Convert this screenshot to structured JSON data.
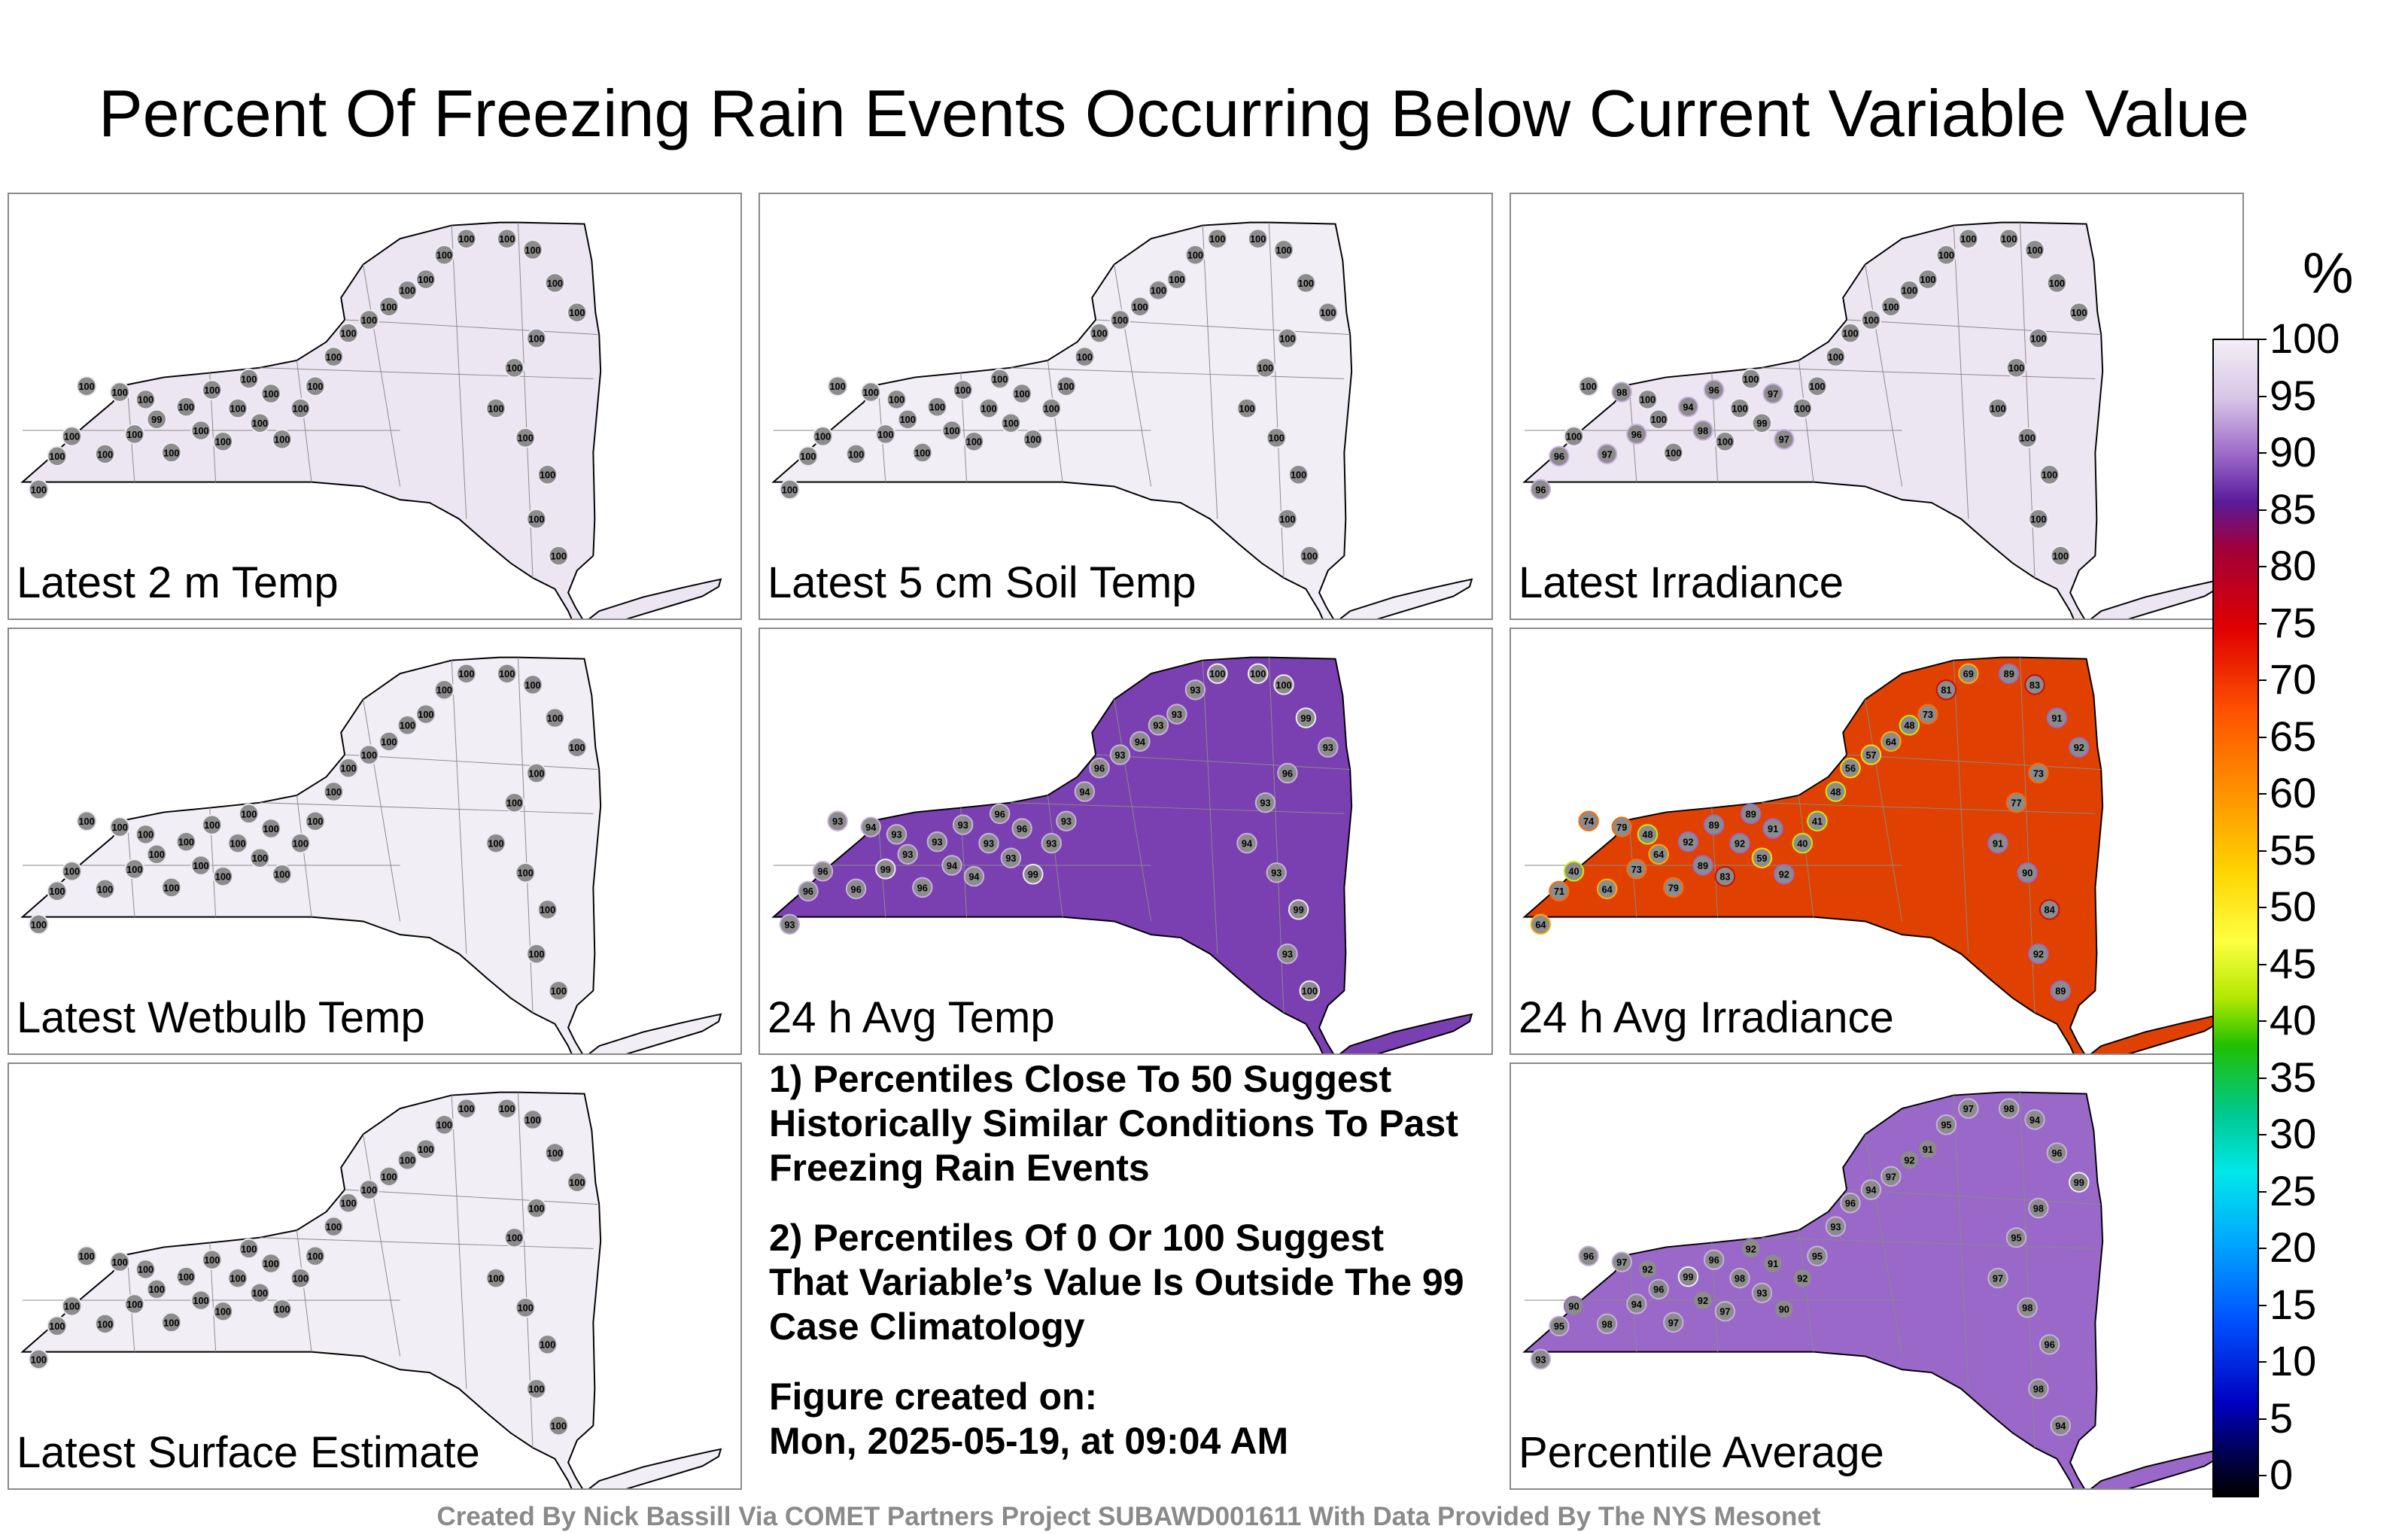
{
  "title": "Percent Of Freezing Rain Events Occurring Below Current Variable Value",
  "panels": [
    {
      "label": "Latest 2 m Temp",
      "fill": "#ece6f2",
      "values": [
        "100",
        "100",
        "100",
        "100",
        "100",
        "100",
        "100",
        "100",
        "99",
        "100",
        "100",
        "100",
        "100",
        "100",
        "100",
        "100",
        "100",
        "100",
        "100",
        "100",
        "100",
        "100",
        "100",
        "100",
        "100",
        "100",
        "100",
        "100",
        "100",
        "100",
        "100",
        "100",
        "100",
        "100",
        "100",
        "100",
        "100",
        "100",
        "100",
        "100"
      ]
    },
    {
      "label": "Latest 5 cm Soil Temp",
      "fill": "#f2eef6",
      "values": [
        "100",
        "100",
        "100",
        "100",
        "100",
        "100",
        "100",
        "100",
        "100",
        "100",
        "100",
        "100",
        "100",
        "100",
        "100",
        "100",
        "100",
        "100",
        "100",
        "100",
        "100",
        "100",
        "100",
        "100",
        "100",
        "100",
        "100",
        "100",
        "100",
        "100",
        "100",
        "100",
        "100",
        "100",
        "100",
        "100",
        "100",
        "100",
        "100",
        "100"
      ]
    },
    {
      "label": "Latest Irradiance",
      "fill": "#ece6f2",
      "values": [
        "96",
        "96",
        "100",
        "100",
        "97",
        "98",
        "96",
        "100",
        "100",
        "100",
        "94",
        "98",
        "96",
        "100",
        "100",
        "100",
        "99",
        "97",
        "97",
        "100",
        "100",
        "100",
        "100",
        "100",
        "100",
        "100",
        "100",
        "100",
        "100",
        "100",
        "100",
        "100",
        "100",
        "100",
        "100",
        "100",
        "100",
        "100",
        "100",
        "100"
      ]
    },
    {
      "label": "Latest Wetbulb Temp",
      "fill": "#f2eef6",
      "values": [
        "100",
        "100",
        "100",
        "100",
        "100",
        "100",
        "100",
        "100",
        "100",
        "100",
        "100",
        "100",
        "100",
        "100",
        "100",
        "100",
        "100",
        "100",
        "100",
        "100",
        "100",
        "100",
        "100",
        "100",
        "100",
        "100",
        "100",
        "100",
        "100",
        "100",
        "100",
        "100",
        "100",
        "100",
        "100",
        "100",
        "100",
        "100",
        "100",
        "100"
      ]
    },
    {
      "label": "24 h Avg Temp",
      "fill": "#7a3fb0",
      "values": [
        "93",
        "96",
        "96",
        "93",
        "96",
        "94",
        "99",
        "93",
        "93",
        "96",
        "93",
        "94",
        "93",
        "94",
        "93",
        "96",
        "93",
        "96",
        "99",
        "93",
        "93",
        "94",
        "96",
        "93",
        "94",
        "93",
        "93",
        "93",
        "100",
        "100",
        "100",
        "99",
        "93",
        "96",
        "93",
        "94",
        "93",
        "99",
        "93",
        "100"
      ]
    },
    {
      "label": "24 h Avg Irradiance",
      "fill": "#e04000",
      "values": [
        "64",
        "71",
        "40",
        "74",
        "64",
        "79",
        "73",
        "48",
        "64",
        "79",
        "92",
        "89",
        "89",
        "83",
        "92",
        "89",
        "59",
        "91",
        "92",
        "40",
        "41",
        "48",
        "56",
        "57",
        "64",
        "48",
        "73",
        "81",
        "69",
        "89",
        "83",
        "91",
        "92",
        "73",
        "77",
        "91",
        "90",
        "84",
        "92",
        "89"
      ]
    },
    {
      "label": "Latest Surface Estimate",
      "fill": "#f2eef6",
      "values": [
        "100",
        "100",
        "100",
        "100",
        "100",
        "100",
        "100",
        "100",
        "100",
        "100",
        "100",
        "100",
        "100",
        "100",
        "100",
        "100",
        "100",
        "100",
        "100",
        "100",
        "100",
        "100",
        "100",
        "100",
        "100",
        "100",
        "100",
        "100",
        "100",
        "100",
        "100",
        "100",
        "100",
        "100",
        "100",
        "100",
        "100",
        "100",
        "100",
        "100"
      ]
    },
    {
      "label": "Percentile Average",
      "fill": "#9a68c8",
      "values": [
        "93",
        "95",
        "90",
        "96",
        "98",
        "97",
        "94",
        "92",
        "96",
        "97",
        "99",
        "92",
        "96",
        "97",
        "98",
        "92",
        "93",
        "91",
        "90",
        "92",
        "95",
        "93",
        "96",
        "94",
        "97",
        "92",
        "91",
        "95",
        "97",
        "98",
        "94",
        "96",
        "99",
        "98",
        "95",
        "97",
        "98",
        "96",
        "98",
        "94"
      ]
    }
  ],
  "notes": [
    "1) Percentiles Close To 50 Suggest Historically Similar Conditions To Past Freezing Rain Events",
    "2) Percentiles Of 0 Or 100 Suggest That Variable’s Value Is Outside The 99 Case Climatology"
  ],
  "figure_created_label": "Figure created on:",
  "figure_created_date": "Mon, 2025-05-19, at 09:04 AM",
  "colorbar": {
    "unit": "%",
    "ticks": [
      "100",
      "95",
      "90",
      "85",
      "80",
      "75",
      "70",
      "65",
      "60",
      "55",
      "50",
      "45",
      "40",
      "35",
      "30",
      "25",
      "20",
      "15",
      "10",
      "5",
      "0"
    ]
  },
  "credit": "Created By Nick Bassill Via COMET Partners Project SUBAWD001611 With Data Provided By The NYS Mesonet"
}
